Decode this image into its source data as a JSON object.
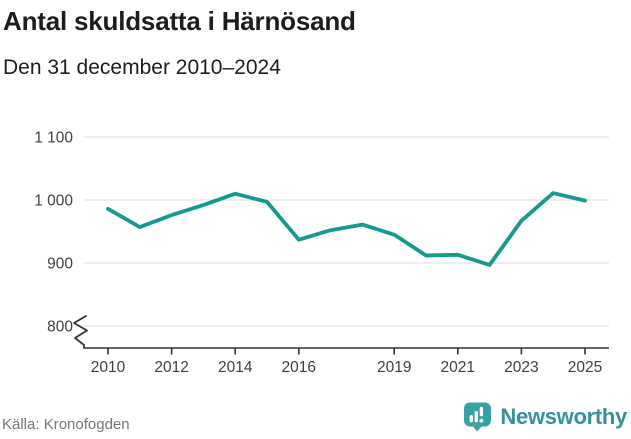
{
  "header": {
    "title": "Antal skuldsatta i Härnösand",
    "subtitle": "Den 31 december 2010–2024"
  },
  "footer": {
    "source": "Källa: Kronofogden",
    "brand_name": "Newsworthy",
    "brand_icon": "bar-chart-speech-bubble-icon"
  },
  "colors": {
    "line": "#16998e",
    "grid": "#e4e4e4",
    "axis": "#333333",
    "tick_text": "#404040",
    "source_text": "#777777",
    "brand_icon": "#3ba0a0",
    "brand_text": "#35929b",
    "background": "#ffffff"
  },
  "chart_data": {
    "type": "line",
    "title": "Antal skuldsatta i Härnösand",
    "subtitle": "Den 31 december 2010–2024",
    "series_name": "Antal skuldsatta",
    "x": [
      2010,
      2011,
      2012,
      2013,
      2014,
      2015,
      2016,
      2017,
      2018,
      2019,
      2020,
      2021,
      2022,
      2023,
      2024,
      2025
    ],
    "values": [
      986,
      957,
      976,
      992,
      1010,
      997,
      937,
      952,
      961,
      945,
      912,
      913,
      897,
      967,
      1011,
      999
    ],
    "xticks": [
      {
        "v": 2010,
        "label": "2010"
      },
      {
        "v": 2012,
        "label": "2012"
      },
      {
        "v": 2014,
        "label": "2014"
      },
      {
        "v": 2016,
        "label": "2016"
      },
      {
        "v": 2019,
        "label": "2019"
      },
      {
        "v": 2021,
        "label": "2021"
      },
      {
        "v": 2023,
        "label": "2023"
      },
      {
        "v": 2025,
        "label": "2025"
      }
    ],
    "yticks": [
      {
        "v": 1100,
        "label": "1 100"
      },
      {
        "v": 1000,
        "label": "1 000"
      },
      {
        "v": 900,
        "label": "900"
      },
      {
        "v": 800,
        "label": "800"
      }
    ],
    "xlabel": "",
    "ylabel": "",
    "ylim": [
      780,
      1130
    ],
    "grid": "horizontal",
    "legend": "none",
    "axis_break_at_bottom": true
  }
}
